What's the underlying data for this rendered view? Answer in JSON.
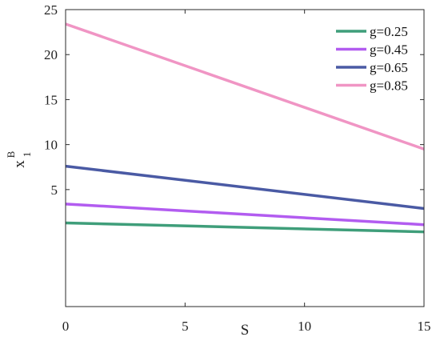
{
  "chart_data": {
    "type": "line",
    "title": "",
    "xlabel": "S",
    "ylabel": {
      "base": "x",
      "superscript": "B",
      "subscript": "1"
    },
    "xlim": [
      0,
      15
    ],
    "ylim": [
      -8,
      25
    ],
    "xticks": [
      0,
      5,
      10,
      15
    ],
    "yticks": [
      5,
      10,
      15,
      20,
      25
    ],
    "x_tick_labels": [
      "0",
      "5",
      "10",
      "15"
    ],
    "y_tick_labels": [
      "5",
      "10",
      "15",
      "20",
      "25"
    ],
    "grid": false,
    "legend_position": "top-right",
    "series": [
      {
        "name": "g=0.25",
        "color": "#3f9e7a",
        "x": [
          0,
          15
        ],
        "values": [
          1.3,
          0.3
        ]
      },
      {
        "name": "g=0.45",
        "color": "#b25cf0",
        "x": [
          0,
          15
        ],
        "values": [
          3.4,
          1.1
        ]
      },
      {
        "name": "g=0.65",
        "color": "#4a5aa4",
        "x": [
          0,
          15
        ],
        "values": [
          7.6,
          2.9
        ]
      },
      {
        "name": "g=0.85",
        "color": "#f095c4",
        "x": [
          0,
          15
        ],
        "values": [
          23.4,
          9.5
        ]
      }
    ]
  }
}
